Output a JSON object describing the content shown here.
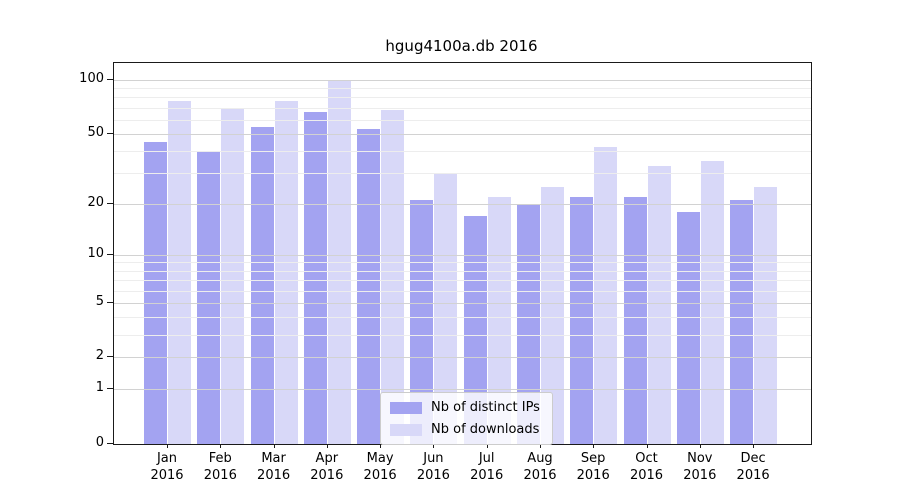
{
  "title": "hgug4100a.db 2016",
  "colors": {
    "ips": "#a3a3f1",
    "downloads": "#d8d8f8",
    "grid_major": "#d2d2d2",
    "grid_minor": "#ededed",
    "axis": "#1a1a1a"
  },
  "legend": {
    "items": [
      {
        "key": "ips",
        "label": "Nb of distinct IPs"
      },
      {
        "key": "downloads",
        "label": "Nb of downloads"
      }
    ]
  },
  "axes": {
    "y_tick_values": [
      100,
      50,
      20,
      10,
      5,
      2,
      1,
      0
    ],
    "y_tick_labels": [
      "100",
      "50",
      "20",
      "10",
      "5",
      "2",
      "1",
      "0"
    ],
    "y_minor_values": [
      3,
      4,
      6,
      7,
      8,
      9,
      30,
      40,
      60,
      70,
      80,
      90
    ],
    "x_tick_labels": [
      [
        "Jan",
        "2016"
      ],
      [
        "Feb",
        "2016"
      ],
      [
        "Mar",
        "2016"
      ],
      [
        "Apr",
        "2016"
      ],
      [
        "May",
        "2016"
      ],
      [
        "Jun",
        "2016"
      ],
      [
        "Jul",
        "2016"
      ],
      [
        "Aug",
        "2016"
      ],
      [
        "Sep",
        "2016"
      ],
      [
        "Oct",
        "2016"
      ],
      [
        "Nov",
        "2016"
      ],
      [
        "Dec",
        "2016"
      ]
    ]
  },
  "chart_data": {
    "type": "bar",
    "title": "hgug4100a.db 2016",
    "categories": [
      "Jan 2016",
      "Feb 2016",
      "Mar 2016",
      "Apr 2016",
      "May 2016",
      "Jun 2016",
      "Jul 2016",
      "Aug 2016",
      "Sep 2016",
      "Oct 2016",
      "Nov 2016",
      "Dec 2016"
    ],
    "series": [
      {
        "name": "Nb of distinct IPs",
        "key": "ips",
        "values": [
          45,
          40,
          55,
          66,
          53,
          21,
          17,
          20,
          22,
          22,
          18,
          21
        ]
      },
      {
        "name": "Nb of downloads",
        "key": "downloads",
        "values": [
          76,
          70,
          76,
          100,
          68,
          30,
          22,
          25,
          42,
          33,
          35,
          25
        ]
      }
    ],
    "xlabel": "",
    "ylabel": "",
    "yscale": "log1p",
    "ylim": [
      0,
      125
    ],
    "y_ticks": [
      0,
      1,
      2,
      5,
      10,
      20,
      50,
      100
    ],
    "grid": true,
    "grid_above_bars": true,
    "legend_position": "lower center"
  }
}
